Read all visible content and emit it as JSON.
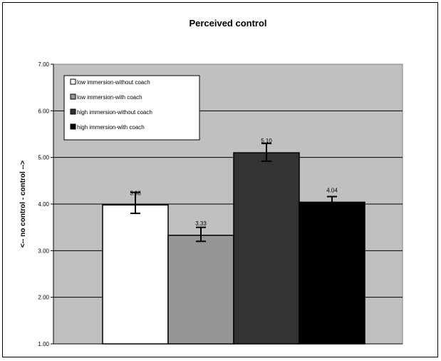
{
  "chart_data": {
    "type": "bar",
    "title": "Perceived control",
    "xlabel": "",
    "ylabel": "<-- no control  -  control -->",
    "ylim": [
      1.0,
      7.0
    ],
    "yticks": [
      "1.00",
      "2.00",
      "3.00",
      "4.00",
      "5.00",
      "6.00",
      "7.00"
    ],
    "grid": true,
    "legend_position": "top-left",
    "plot_background": "#c0c0c0",
    "series": [
      {
        "name": "low immersion-without coach",
        "value": 3.98,
        "label": "3.98",
        "error_low": 3.8,
        "error_high": 4.25,
        "color": "#ffffff"
      },
      {
        "name": "low immersion-with coach",
        "value": 3.33,
        "label": "3.33",
        "error_low": 3.2,
        "error_high": 3.5,
        "color": "#969696"
      },
      {
        "name": "high immersion-without coach",
        "value": 5.1,
        "label": "5.10",
        "error_low": 4.92,
        "error_high": 5.3,
        "color": "#333333"
      },
      {
        "name": "high immersion-with coach",
        "value": 4.04,
        "label": "4.04",
        "error_low": 3.93,
        "error_high": 4.16,
        "color": "#000000"
      }
    ]
  }
}
